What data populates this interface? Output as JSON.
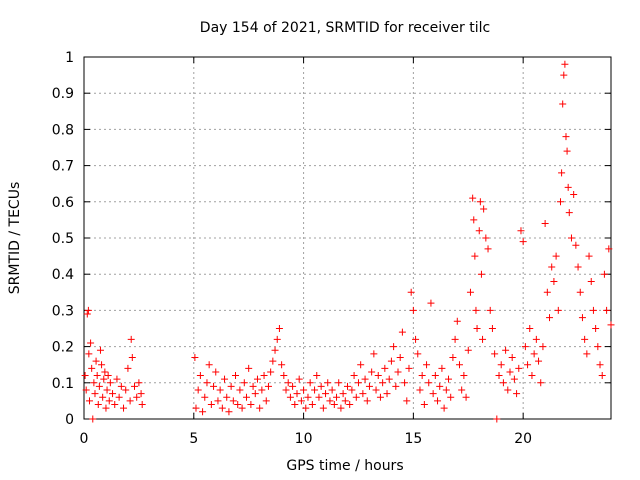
{
  "chart_data": {
    "type": "scatter",
    "title": "Day 154 of 2021, SRMTID for receiver tilc",
    "xlabel": "GPS time / hours",
    "ylabel": "SRMTID / TECUs",
    "xlim": [
      0,
      24
    ],
    "ylim": [
      0,
      1
    ],
    "xticks": [
      0,
      5,
      10,
      15,
      20
    ],
    "xtick_labels": [
      "0",
      "5",
      "10",
      "15",
      "20"
    ],
    "yticks": [
      0,
      0.1,
      0.2,
      0.3,
      0.4,
      0.5,
      0.6,
      0.7,
      0.8,
      0.9,
      1
    ],
    "ytick_labels": [
      "0",
      "0.1",
      "0.2",
      "0.3",
      "0.4",
      "0.5",
      "0.6",
      "0.7",
      "0.8",
      "0.9",
      "1"
    ],
    "grid": true,
    "series": [
      {
        "name": "SRMTID",
        "marker": "+",
        "color": "#ff0000",
        "points": [
          [
            0.05,
            0.12
          ],
          [
            0.1,
            0.08
          ],
          [
            0.15,
            0.29
          ],
          [
            0.2,
            0.3
          ],
          [
            0.22,
            0.18
          ],
          [
            0.25,
            0.05
          ],
          [
            0.3,
            0.21
          ],
          [
            0.35,
            0.14
          ],
          [
            0.4,
            0.0
          ],
          [
            0.45,
            0.1
          ],
          [
            0.5,
            0.07
          ],
          [
            0.55,
            0.16
          ],
          [
            0.6,
            0.12
          ],
          [
            0.65,
            0.04
          ],
          [
            0.7,
            0.09
          ],
          [
            0.75,
            0.19
          ],
          [
            0.8,
            0.15
          ],
          [
            0.85,
            0.06
          ],
          [
            0.9,
            0.11
          ],
          [
            0.95,
            0.13
          ],
          [
            1.0,
            0.03
          ],
          [
            1.05,
            0.08
          ],
          [
            1.1,
            0.12
          ],
          [
            1.15,
            0.05
          ],
          [
            1.2,
            0.1
          ],
          [
            1.3,
            0.07
          ],
          [
            1.4,
            0.04
          ],
          [
            1.5,
            0.11
          ],
          [
            1.6,
            0.06
          ],
          [
            1.7,
            0.09
          ],
          [
            1.8,
            0.03
          ],
          [
            1.9,
            0.08
          ],
          [
            2.0,
            0.14
          ],
          [
            2.1,
            0.05
          ],
          [
            2.15,
            0.22
          ],
          [
            2.2,
            0.17
          ],
          [
            2.3,
            0.09
          ],
          [
            2.4,
            0.06
          ],
          [
            2.5,
            0.1
          ],
          [
            2.6,
            0.07
          ],
          [
            2.65,
            0.04
          ],
          [
            5.05,
            0.17
          ],
          [
            5.1,
            0.03
          ],
          [
            5.2,
            0.08
          ],
          [
            5.3,
            0.12
          ],
          [
            5.4,
            0.02
          ],
          [
            5.5,
            0.06
          ],
          [
            5.6,
            0.1
          ],
          [
            5.7,
            0.15
          ],
          [
            5.8,
            0.04
          ],
          [
            5.9,
            0.09
          ],
          [
            6.0,
            0.13
          ],
          [
            6.1,
            0.05
          ],
          [
            6.2,
            0.08
          ],
          [
            6.3,
            0.03
          ],
          [
            6.4,
            0.11
          ],
          [
            6.5,
            0.06
          ],
          [
            6.6,
            0.02
          ],
          [
            6.7,
            0.09
          ],
          [
            6.8,
            0.05
          ],
          [
            6.9,
            0.12
          ],
          [
            7.0,
            0.04
          ],
          [
            7.1,
            0.08
          ],
          [
            7.2,
            0.03
          ],
          [
            7.3,
            0.1
          ],
          [
            7.4,
            0.06
          ],
          [
            7.5,
            0.14
          ],
          [
            7.6,
            0.04
          ],
          [
            7.7,
            0.09
          ],
          [
            7.8,
            0.07
          ],
          [
            7.9,
            0.11
          ],
          [
            8.0,
            0.03
          ],
          [
            8.1,
            0.08
          ],
          [
            8.2,
            0.12
          ],
          [
            8.3,
            0.05
          ],
          [
            8.4,
            0.09
          ],
          [
            8.5,
            0.13
          ],
          [
            8.6,
            0.16
          ],
          [
            8.7,
            0.19
          ],
          [
            8.8,
            0.22
          ],
          [
            8.9,
            0.25
          ],
          [
            9.0,
            0.15
          ],
          [
            9.1,
            0.12
          ],
          [
            9.2,
            0.08
          ],
          [
            9.3,
            0.1
          ],
          [
            9.4,
            0.06
          ],
          [
            9.5,
            0.09
          ],
          [
            9.6,
            0.04
          ],
          [
            9.7,
            0.07
          ],
          [
            9.8,
            0.11
          ],
          [
            9.9,
            0.05
          ],
          [
            10.0,
            0.08
          ],
          [
            10.1,
            0.03
          ],
          [
            10.2,
            0.06
          ],
          [
            10.3,
            0.1
          ],
          [
            10.4,
            0.04
          ],
          [
            10.5,
            0.08
          ],
          [
            10.6,
            0.12
          ],
          [
            10.7,
            0.06
          ],
          [
            10.8,
            0.09
          ],
          [
            10.9,
            0.03
          ],
          [
            11.0,
            0.07
          ],
          [
            11.1,
            0.1
          ],
          [
            11.2,
            0.05
          ],
          [
            11.3,
            0.08
          ],
          [
            11.4,
            0.04
          ],
          [
            11.5,
            0.06
          ],
          [
            11.6,
            0.1
          ],
          [
            11.7,
            0.03
          ],
          [
            11.8,
            0.07
          ],
          [
            11.9,
            0.05
          ],
          [
            12.0,
            0.09
          ],
          [
            12.1,
            0.04
          ],
          [
            12.2,
            0.08
          ],
          [
            12.3,
            0.12
          ],
          [
            12.4,
            0.06
          ],
          [
            12.5,
            0.1
          ],
          [
            12.6,
            0.15
          ],
          [
            12.7,
            0.07
          ],
          [
            12.8,
            0.11
          ],
          [
            12.9,
            0.05
          ],
          [
            13.0,
            0.09
          ],
          [
            13.1,
            0.13
          ],
          [
            13.2,
            0.18
          ],
          [
            13.3,
            0.08
          ],
          [
            13.4,
            0.12
          ],
          [
            13.5,
            0.06
          ],
          [
            13.6,
            0.1
          ],
          [
            13.7,
            0.14
          ],
          [
            13.8,
            0.07
          ],
          [
            13.9,
            0.11
          ],
          [
            14.0,
            0.16
          ],
          [
            14.1,
            0.2
          ],
          [
            14.2,
            0.09
          ],
          [
            14.3,
            0.13
          ],
          [
            14.4,
            0.17
          ],
          [
            14.5,
            0.24
          ],
          [
            14.6,
            0.1
          ],
          [
            14.7,
            0.05
          ],
          [
            14.8,
            0.14
          ],
          [
            14.9,
            0.35
          ],
          [
            15.0,
            0.3
          ],
          [
            15.1,
            0.22
          ],
          [
            15.2,
            0.18
          ],
          [
            15.3,
            0.08
          ],
          [
            15.4,
            0.12
          ],
          [
            15.5,
            0.04
          ],
          [
            15.6,
            0.15
          ],
          [
            15.7,
            0.1
          ],
          [
            15.8,
            0.32
          ],
          [
            15.9,
            0.07
          ],
          [
            16.0,
            0.12
          ],
          [
            16.1,
            0.05
          ],
          [
            16.2,
            0.09
          ],
          [
            16.3,
            0.14
          ],
          [
            16.4,
            0.03
          ],
          [
            16.5,
            0.08
          ],
          [
            16.6,
            0.11
          ],
          [
            16.7,
            0.06
          ],
          [
            16.8,
            0.17
          ],
          [
            16.9,
            0.22
          ],
          [
            17.0,
            0.27
          ],
          [
            17.1,
            0.15
          ],
          [
            17.2,
            0.08
          ],
          [
            17.3,
            0.12
          ],
          [
            17.4,
            0.06
          ],
          [
            17.5,
            0.19
          ],
          [
            17.6,
            0.35
          ],
          [
            17.7,
            0.61
          ],
          [
            17.75,
            0.55
          ],
          [
            17.8,
            0.45
          ],
          [
            17.85,
            0.3
          ],
          [
            17.9,
            0.25
          ],
          [
            18.0,
            0.52
          ],
          [
            18.05,
            0.6
          ],
          [
            18.1,
            0.4
          ],
          [
            18.15,
            0.22
          ],
          [
            18.2,
            0.58
          ],
          [
            18.3,
            0.5
          ],
          [
            18.4,
            0.47
          ],
          [
            18.5,
            0.3
          ],
          [
            18.6,
            0.25
          ],
          [
            18.7,
            0.18
          ],
          [
            18.8,
            0.0
          ],
          [
            18.9,
            0.12
          ],
          [
            19.0,
            0.15
          ],
          [
            19.1,
            0.1
          ],
          [
            19.2,
            0.19
          ],
          [
            19.3,
            0.08
          ],
          [
            19.4,
            0.13
          ],
          [
            19.5,
            0.17
          ],
          [
            19.6,
            0.11
          ],
          [
            19.7,
            0.07
          ],
          [
            19.8,
            0.14
          ],
          [
            19.9,
            0.52
          ],
          [
            20.0,
            0.49
          ],
          [
            20.1,
            0.2
          ],
          [
            20.2,
            0.15
          ],
          [
            20.3,
            0.25
          ],
          [
            20.4,
            0.12
          ],
          [
            20.5,
            0.18
          ],
          [
            20.6,
            0.22
          ],
          [
            20.7,
            0.16
          ],
          [
            20.8,
            0.1
          ],
          [
            20.9,
            0.2
          ],
          [
            21.0,
            0.54
          ],
          [
            21.1,
            0.35
          ],
          [
            21.2,
            0.28
          ],
          [
            21.3,
            0.42
          ],
          [
            21.4,
            0.38
          ],
          [
            21.5,
            0.45
          ],
          [
            21.6,
            0.3
          ],
          [
            21.7,
            0.6
          ],
          [
            21.75,
            0.68
          ],
          [
            21.8,
            0.87
          ],
          [
            21.85,
            0.95
          ],
          [
            21.9,
            0.98
          ],
          [
            21.95,
            0.78
          ],
          [
            22.0,
            0.74
          ],
          [
            22.05,
            0.64
          ],
          [
            22.1,
            0.57
          ],
          [
            22.2,
            0.5
          ],
          [
            22.3,
            0.62
          ],
          [
            22.4,
            0.48
          ],
          [
            22.5,
            0.42
          ],
          [
            22.6,
            0.35
          ],
          [
            22.7,
            0.28
          ],
          [
            22.8,
            0.22
          ],
          [
            22.9,
            0.18
          ],
          [
            23.0,
            0.45
          ],
          [
            23.1,
            0.38
          ],
          [
            23.2,
            0.3
          ],
          [
            23.3,
            0.25
          ],
          [
            23.4,
            0.2
          ],
          [
            23.5,
            0.15
          ],
          [
            23.6,
            0.12
          ],
          [
            23.7,
            0.4
          ],
          [
            23.8,
            0.3
          ],
          [
            23.9,
            0.47
          ],
          [
            24.0,
            0.26
          ]
        ]
      }
    ]
  }
}
